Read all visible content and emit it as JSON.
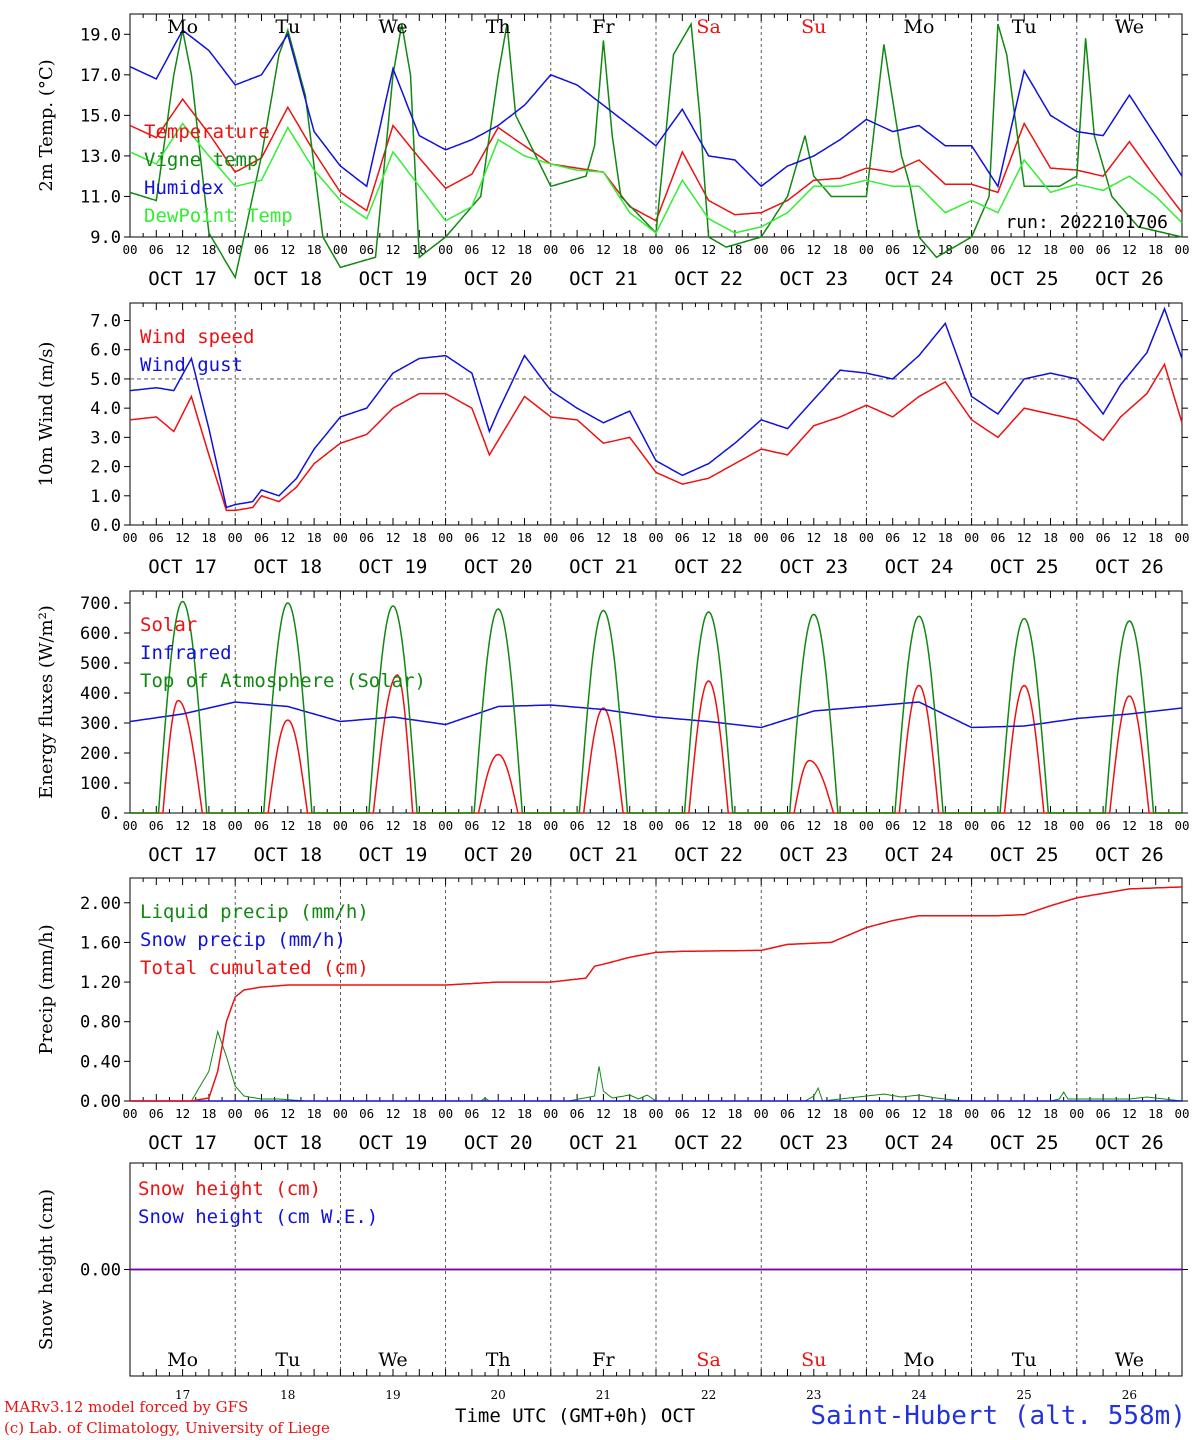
{
  "colors": {
    "red": "#ee1111",
    "green": "#118811",
    "blue": "#1111dd",
    "lightgreen": "#33ee33",
    "darkgreen": "#006600",
    "purple": "#8800aa",
    "grid": "#333333"
  },
  "dates": [
    "OCT 17",
    "OCT 18",
    "OCT 19",
    "OCT 20",
    "OCT 21",
    "OCT 22",
    "OCT 23",
    "OCT 24",
    "OCT 25",
    "OCT 26"
  ],
  "date_numbers": [
    "17",
    "18",
    "19",
    "20",
    "21",
    "22",
    "23",
    "24",
    "25",
    "26"
  ],
  "day_names": [
    "Mo",
    "Tu",
    "We",
    "Th",
    "Fr",
    "Sa",
    "Su",
    "Mo",
    "Tu",
    "We"
  ],
  "weekend_days": [
    5,
    6
  ],
  "hour_ticks": [
    "00",
    "06",
    "12",
    "18"
  ],
  "footer": {
    "model": "MARv3.12 model forced by GFS",
    "credit": "(c) Lab. of Climatology, University of Liege",
    "time_label": "Time UTC (GMT+0h) OCT",
    "station": "Saint-Hubert (alt. 558m)"
  },
  "chart_data": [
    {
      "id": "temp",
      "type": "line",
      "ylabel": "2m Temp. (°C)",
      "ylim": [
        9,
        20
      ],
      "yticks": [
        9.0,
        11.0,
        13.0,
        15.0,
        17.0,
        19.0
      ],
      "yticklabels": [
        "9.0",
        "11.0",
        "13.0",
        "15.0",
        "17.0",
        "19.0"
      ],
      "annotation": "run: 2022101706",
      "x_unit": "hours since OCT 17 00 UTC",
      "series": [
        {
          "name": "Temperature",
          "color": "red",
          "x": [
            0,
            6,
            12,
            18,
            24,
            30,
            36,
            42,
            48,
            54,
            60,
            66,
            72,
            78,
            84,
            90,
            96,
            102,
            108,
            114,
            120,
            126,
            132,
            138,
            144,
            150,
            156,
            162,
            168,
            174,
            180,
            186,
            192,
            198,
            204,
            210,
            216,
            222,
            228,
            234,
            240
          ],
          "y": [
            14.5,
            13.9,
            15.8,
            14.1,
            12.2,
            12.9,
            15.4,
            13.2,
            11.2,
            10.3,
            14.5,
            12.9,
            11.4,
            12.1,
            14.4,
            13.5,
            12.6,
            12.4,
            12.2,
            10.5,
            9.8,
            13.2,
            10.8,
            10.1,
            10.2,
            10.8,
            11.8,
            11.9,
            12.4,
            12.2,
            12.8,
            11.6,
            11.6,
            11.2,
            14.6,
            12.4,
            12.3,
            12.0,
            13.7,
            11.9,
            10.2
          ]
        },
        {
          "name": "Vigne temp",
          "color": "green",
          "x": [
            0,
            6,
            10,
            12,
            14,
            18,
            24,
            30,
            34,
            36,
            40,
            44,
            48,
            56,
            60,
            62,
            64,
            66,
            72,
            80,
            84,
            86,
            88,
            96,
            104,
            106,
            108,
            110,
            112,
            120,
            124,
            128,
            130,
            132,
            136,
            144,
            150,
            154,
            156,
            160,
            168,
            172,
            176,
            178,
            180,
            184,
            192,
            196,
            198,
            200,
            204,
            212,
            216,
            218,
            220,
            224,
            230,
            240
          ],
          "y": [
            11.2,
            10.8,
            17.0,
            19.2,
            17.0,
            9.2,
            7.0,
            13.0,
            18.0,
            19.2,
            16.0,
            9.0,
            7.5,
            8.0,
            17.0,
            19.5,
            17.0,
            8.0,
            9.0,
            11.0,
            17.0,
            19.5,
            15.0,
            11.5,
            12.0,
            13.5,
            18.7,
            14.0,
            11.0,
            9.2,
            18.0,
            19.5,
            15.0,
            9.0,
            8.5,
            9.0,
            11.0,
            14.0,
            12.0,
            11.0,
            11.0,
            18.5,
            13.0,
            11.5,
            9.0,
            8.0,
            9.0,
            11.0,
            19.5,
            18.0,
            11.5,
            11.5,
            12.0,
            18.8,
            14.0,
            11.0,
            9.5,
            9.0
          ]
        },
        {
          "name": "Humidex",
          "color": "blue",
          "x": [
            0,
            6,
            12,
            18,
            24,
            30,
            36,
            42,
            48,
            54,
            60,
            66,
            72,
            78,
            84,
            90,
            96,
            102,
            108,
            114,
            120,
            126,
            132,
            138,
            144,
            150,
            156,
            162,
            168,
            174,
            180,
            186,
            192,
            198,
            204,
            210,
            216,
            222,
            228,
            234,
            240
          ],
          "y": [
            17.4,
            16.8,
            19.2,
            18.2,
            16.5,
            17.0,
            19.0,
            14.2,
            12.5,
            11.5,
            17.3,
            14.0,
            13.3,
            13.8,
            14.5,
            15.5,
            17.0,
            16.5,
            15.5,
            14.5,
            13.5,
            15.3,
            13.0,
            12.8,
            11.5,
            12.5,
            13.0,
            13.8,
            14.8,
            14.2,
            14.5,
            13.5,
            13.5,
            11.5,
            17.2,
            15.0,
            14.2,
            14.0,
            16.0,
            14.0,
            12.0
          ]
        },
        {
          "name": "DewPoint Temp",
          "color": "lightgreen",
          "x": [
            0,
            6,
            12,
            18,
            24,
            30,
            36,
            42,
            48,
            54,
            60,
            66,
            72,
            78,
            84,
            90,
            96,
            102,
            108,
            114,
            120,
            126,
            132,
            138,
            144,
            150,
            156,
            162,
            168,
            174,
            180,
            186,
            192,
            198,
            204,
            210,
            216,
            222,
            228,
            234,
            240
          ],
          "y": [
            13.2,
            12.6,
            14.6,
            13.0,
            11.5,
            11.8,
            14.4,
            12.3,
            10.8,
            9.9,
            13.2,
            11.5,
            9.8,
            10.5,
            13.8,
            13.0,
            12.6,
            12.3,
            12.2,
            10.2,
            9.2,
            11.8,
            9.9,
            9.2,
            9.5,
            10.2,
            11.5,
            11.5,
            11.8,
            11.5,
            11.5,
            10.2,
            10.8,
            10.2,
            12.8,
            11.2,
            11.6,
            11.3,
            12.0,
            11.0,
            9.7
          ]
        }
      ]
    },
    {
      "id": "wind",
      "type": "line",
      "ylabel": "10m Wind (m/s)",
      "ylim": [
        0,
        7.6
      ],
      "yticks": [
        0,
        1,
        2,
        3,
        4,
        5,
        6,
        7
      ],
      "yticklabels": [
        "0.0",
        "1.0",
        "2.0",
        "3.0",
        "4.0",
        "5.0",
        "6.0",
        "7.0"
      ],
      "reference_line": 5.0,
      "series": [
        {
          "name": "Wind speed",
          "color": "red",
          "x": [
            0,
            6,
            10,
            14,
            18,
            22,
            24,
            28,
            30,
            34,
            38,
            42,
            48,
            54,
            60,
            66,
            72,
            78,
            82,
            84,
            90,
            96,
            102,
            108,
            114,
            120,
            126,
            132,
            138,
            144,
            150,
            156,
            162,
            168,
            174,
            180,
            186,
            192,
            198,
            204,
            210,
            216,
            222,
            226,
            232,
            236,
            240
          ],
          "y": [
            3.6,
            3.7,
            3.2,
            4.4,
            2.4,
            0.5,
            0.5,
            0.6,
            1.0,
            0.8,
            1.3,
            2.1,
            2.8,
            3.1,
            4.0,
            4.5,
            4.5,
            4.0,
            2.4,
            2.9,
            4.4,
            3.7,
            3.6,
            2.8,
            3.0,
            1.8,
            1.4,
            1.6,
            2.1,
            2.6,
            2.4,
            3.4,
            3.7,
            4.1,
            3.7,
            4.4,
            4.9,
            3.6,
            3.0,
            4.0,
            3.8,
            3.6,
            2.9,
            3.7,
            4.5,
            5.5,
            3.5
          ]
        },
        {
          "name": "Wind gust",
          "color": "blue",
          "x": [
            0,
            6,
            10,
            14,
            18,
            22,
            24,
            28,
            30,
            34,
            38,
            42,
            48,
            54,
            60,
            66,
            72,
            78,
            82,
            84,
            90,
            96,
            102,
            108,
            114,
            120,
            126,
            132,
            138,
            144,
            150,
            156,
            162,
            168,
            174,
            180,
            186,
            192,
            198,
            204,
            210,
            216,
            222,
            226,
            232,
            236,
            240
          ],
          "y": [
            4.6,
            4.7,
            4.6,
            5.7,
            3.3,
            0.6,
            0.7,
            0.8,
            1.2,
            1.0,
            1.6,
            2.6,
            3.7,
            4.0,
            5.2,
            5.7,
            5.8,
            5.2,
            3.2,
            3.9,
            5.8,
            4.6,
            4.0,
            3.5,
            3.9,
            2.2,
            1.7,
            2.1,
            2.8,
            3.6,
            3.3,
            4.3,
            5.3,
            5.2,
            5.0,
            5.8,
            6.9,
            4.4,
            3.8,
            5.0,
            5.2,
            5.0,
            3.8,
            4.8,
            5.9,
            7.4,
            5.7
          ]
        }
      ]
    },
    {
      "id": "energy",
      "type": "line",
      "ylabel": "Energy fluxes (W/m²)",
      "ylim": [
        0,
        740
      ],
      "yticks": [
        0,
        100,
        200,
        300,
        400,
        500,
        600,
        700
      ],
      "yticklabels": [
        "0.",
        "100.",
        "200.",
        "300.",
        "400.",
        "500.",
        "600.",
        "700."
      ],
      "series": [
        {
          "name": "Solar",
          "color": "red",
          "daily_peak_hour": [
            11,
            12,
            13,
            12,
            12,
            12,
            11,
            12,
            12,
            12
          ],
          "daily_peak": [
            375,
            310,
            460,
            195,
            350,
            440,
            175,
            425,
            425,
            390
          ]
        },
        {
          "name": "Infrared",
          "color": "blue",
          "x": [
            0,
            12,
            24,
            36,
            48,
            60,
            72,
            84,
            96,
            108,
            120,
            132,
            144,
            156,
            168,
            180,
            192,
            204,
            216,
            228,
            240
          ],
          "y": [
            305,
            330,
            370,
            355,
            305,
            320,
            295,
            355,
            360,
            345,
            320,
            305,
            285,
            340,
            355,
            370,
            285,
            290,
            315,
            330,
            350
          ]
        },
        {
          "name": "Top of Atmosphere (Solar)",
          "color": "green",
          "daily_peak": [
            705,
            700,
            690,
            680,
            675,
            670,
            662,
            656,
            648,
            640
          ]
        }
      ]
    },
    {
      "id": "precip",
      "type": "line",
      "ylabel": "Precip (mm/h)",
      "ylim": [
        0,
        2.25
      ],
      "yticks": [
        0,
        0.4,
        0.8,
        1.2,
        1.6,
        2.0
      ],
      "yticklabels": [
        "0.00",
        "0.40",
        "0.80",
        "1.20",
        "1.60",
        "2.00"
      ],
      "series": [
        {
          "name": "Liquid precip (mm/h)",
          "color": "green",
          "x": [
            0,
            14,
            18,
            20,
            22,
            24,
            26,
            30,
            34,
            40,
            80,
            81,
            82,
            100,
            106,
            107,
            108,
            110,
            114,
            116,
            118,
            120,
            154,
            156,
            157,
            158,
            168,
            172,
            176,
            180,
            184,
            190,
            210,
            212,
            213,
            214,
            228,
            232,
            240
          ],
          "y": [
            0,
            0,
            0.3,
            0.7,
            0.45,
            0.15,
            0.05,
            0.02,
            0.02,
            0,
            0,
            0.03,
            0,
            0,
            0.05,
            0.35,
            0.1,
            0.03,
            0.06,
            0.02,
            0.06,
            0,
            0,
            0.05,
            0.13,
            0,
            0.05,
            0.07,
            0.04,
            0.06,
            0.03,
            0,
            0,
            0.02,
            0.09,
            0.02,
            0.02,
            0.04,
            0
          ]
        },
        {
          "name": "Snow precip (mm/h)",
          "color": "blue",
          "x": [
            0,
            240
          ],
          "y": [
            0,
            0
          ]
        },
        {
          "name": "Total cumulated (cm)",
          "color": "red",
          "x": [
            0,
            14,
            18,
            20,
            22,
            24,
            26,
            30,
            36,
            48,
            72,
            84,
            96,
            104,
            106,
            108,
            114,
            120,
            126,
            144,
            150,
            160,
            168,
            174,
            180,
            192,
            198,
            204,
            210,
            216,
            228,
            240
          ],
          "y": [
            0,
            0,
            0.03,
            0.3,
            0.8,
            1.05,
            1.12,
            1.15,
            1.17,
            1.17,
            1.17,
            1.2,
            1.2,
            1.24,
            1.36,
            1.38,
            1.45,
            1.5,
            1.51,
            1.52,
            1.58,
            1.6,
            1.75,
            1.82,
            1.87,
            1.87,
            1.87,
            1.88,
            1.97,
            2.05,
            2.14,
            2.16
          ]
        }
      ]
    },
    {
      "id": "snow",
      "type": "line",
      "ylabel": "Snow height (cm)",
      "ylim": [
        -1,
        1
      ],
      "yticks": [
        0
      ],
      "yticklabels": [
        "0.00"
      ],
      "series": [
        {
          "name": "Snow height (cm)",
          "color": "red",
          "x": [
            0,
            240
          ],
          "y": [
            0,
            0
          ]
        },
        {
          "name": "Snow height (cm W.E.)",
          "color": "blue",
          "x": [
            0,
            240
          ],
          "y": [
            0,
            0
          ]
        }
      ]
    }
  ]
}
